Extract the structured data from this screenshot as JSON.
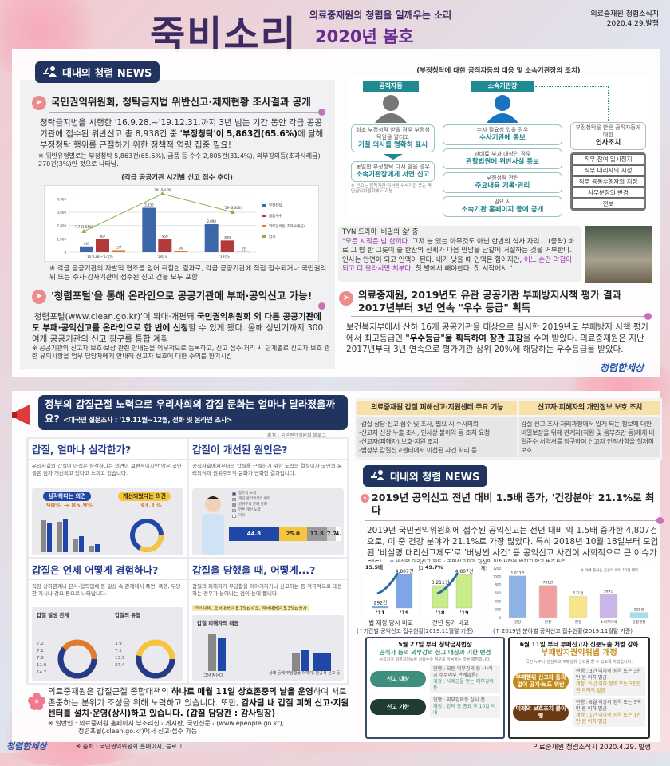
{
  "header": {
    "title": "죽비소리",
    "subtitle": "의료중재원의 청렴을 일깨우는 소리",
    "issue": "2020년 봄호",
    "publisher": "의료중재원 청렴소식지",
    "date": "2020.4.29.발행"
  },
  "news_badge": "대내외 청렴 NEWS",
  "article1": {
    "title": "국민권익위원회, 청탁금지법 위반신고·제재현황 조사결과 공개",
    "body_a": "청탁금지법을 시행한 '16.9.28.~'19.12.31.까지 3년 넘는 기간 동안 각급 공공기관에 접수된 위반신고 총 8,938건 중 ",
    "body_b": "'부정청탁'이 5,863건(65.6%)",
    "body_c": "에 달해 부정청탁 행위를 근절하기 위한 정책적 역량 집중 필요!",
    "note": "※ 위반유형별로는 부정청탁 5,863건(65.6%), 금품 등 수수 2,805건(31.4%), 외부강의등(초과사례금) 270건(3%)인 것으로 나타남.",
    "chart_note": "※ 각급 공공기관의 자발적 협조를 얻어 취합한 결과로, 각급 공공기관에 직접 접수되거나 국민권익위 또는 수사·감사기관에 접수된 신고 건을 모두 포함"
  },
  "article2": {
    "title": "'청렴포털'을 통해 온라인으로 공공기관에 부패·공익신고 가능!",
    "body_a": "'청렴포털(www.clean.go.kr)'이 확대·개편돼 ",
    "body_b": "국민권익위원회 외 다른 공공기관에도 부패·공익신고를 온라인으로 한 번에 신청",
    "body_c": "할 수 있게 됐다. 올해 상반기까지 300여개 공공기관의 신고 창구를 통합 계획",
    "note": "※ 공공기관의 신고자 보호·보상 관련 안내문을 의무적으로 등록하고, 신고 접수·처리 시 단계별로 신고자 보호 관련 유의사항을 업무 담당자에게 안내해 신고자 보호에 대한 주의를 환기시킴"
  },
  "diagram": {
    "title": "(부정청탁에 대한 공직자등의 대응 및 소속기관장의 조치)",
    "col1_head": "공직자등",
    "col2_head": "소속기관장",
    "c1_box1_small": "최초 부정청탁 받을 경우 부정청탁임을 알리고",
    "c1_box1_strong": "거절 의사를 명확히 표시",
    "c1_box2_small": "동일한 부정청탁 다시 받을 경우",
    "c1_box2_strong": "소속기관장에게 서면 신고",
    "c1_note": "※ 신고는 감독기관·감사원·수사기관 또는 국민권익위원회에도 가능",
    "c2_boxes": [
      {
        "small": "수사 필요성 있을 경우",
        "strong": "수사기관에 통보"
      },
      {
        "small": "과태료 부과 대상인 경우",
        "strong": "관할법원에 위반사실 통보"
      },
      {
        "small": "부정청탁 관련",
        "strong": "주요내용 기록·관리"
      },
      {
        "small": "필요 시",
        "strong": "소속기관 홈페이지 등에 공개"
      }
    ],
    "c3_head_small": "부정청탁을 받은 공직자등에 대한",
    "c3_head": "인사조치",
    "c3_items": [
      "직무 참여 일시정지",
      "직무 대리자의 지정",
      "직무 공동수행자의 지정",
      "사무분장의 변경",
      "전보"
    ]
  },
  "quote": {
    "source": "TVN 드라마 '비밀의 숲' 중",
    "hl1": "\"모든 시작은 밥 한끼다.",
    "t1": " 그저 늘 있는 아무것도 아닌 한번의 식사 자리... (중략) 바로 그 밥 한 그릇이 술 한잔의 신세가 다음 만남을 단칼에 거절하는 것을 거부한다. 인사는 안면이 되고 인맥이 된다. 내가 낮을 때 인맥은 힘이지만, ",
    "hl2": "어느 순간 약점이 되고 더 올라서면 치부다.",
    "t2": " 첫 발에서 빼야한다. 첫 시작에서.\""
  },
  "article3": {
    "title_1": "의료중재원, 2019년도 유관 공공기관 부패방지시책 평가 결과",
    "title_2": "2017년부터 3년 연속 \"우수 등급\" 획득",
    "body_a": "보건복지부에서 산하 16개 공공기관을 대상으로 실시한 2019년도 부패방지 시책 평가에서 최고등급인 ",
    "body_b": "\"우수등급\"을 획득하여 장관 표창",
    "body_c": "을 수여 받았다. 의료중재원은 지난 2017년부터 3년 연속으로 평가기관 상위 20%에 해당하는 우수등급을 받았다."
  },
  "logo_text": "청렴한세상",
  "survey": {
    "title": "정부의 갑질근절 노력으로 우리사회의 갑질 문화는 얼마나 달라졌을까요?",
    "subtitle": "<대국민 설문조사 : '19.11월~12월, 전화 및 온라인 조사>",
    "source": "출처 : 국민권익위원회 블로그",
    "p1": {
      "title": "갑질, 얼마나 심각한가?",
      "desc": "우리사회의 갑질이 아직은 심각하다는 의견이 보편적이지만 많은 국민들은 점차 개선되고 있다고 느끼고 있습니다.",
      "pill1": "심각하다는 의견",
      "val1": "90% → 85.9%",
      "pill2": "개선되었다는 의견",
      "val2": "33.1%"
    },
    "p2": {
      "title": "갑질이 개선된 원인은?",
      "desc": "공직사회에서부터의 갑질을 근절하기 위한 노력의 결실이자 국민의 윤리의식과 권위주의적 문화가 변화한 결과입니다.",
      "segments": [
        {
          "label": "정부의 노력",
          "value": "44.8",
          "color": "#1f47a8"
        },
        {
          "label": "개인 윤리의식의 변화",
          "value": "25.0",
          "color": "#f5c53a"
        },
        {
          "label": "권위주의 문화 완화",
          "value": "17.8",
          "color": "#9a9a9a"
        },
        {
          "label": "언론 개선 노력",
          "value": "7.7",
          "color": "#cfcfcf"
        },
        {
          "label": "기타",
          "value": "4.6",
          "color": "#ffffff"
        }
      ]
    },
    "p3": {
      "title": "갑질은 언제 어떻게 경험하나?",
      "desc": "직장 상하관계나 본사-협력업체 등 일상 속 관계에서 폭언, 폭행, 부당한 지시나 강요 등으로 나타납니다.",
      "sub1": "갑질 발생 관계",
      "sub2": "갑질의 유형",
      "left_vals": [
        "7.2",
        "7.1",
        "7.8",
        "11.0",
        "14.7"
      ],
      "right_vals": [
        "3.9",
        "7.1",
        "13.9",
        "27.4"
      ]
    },
    "p4": {
      "title": "갑질을 당했을 때, 어떻게...?",
      "desc": "갑질의 피해자가 부당함을 이야기하거나 신고하는 등 적극적으로 대응하는 경우가 늘어나는 점이 눈에 띕니다.",
      "highlight": "전년 대비, 소극대응은 8.7%p 감소, 적극대응은 5.3%p 증가",
      "chart_title": "갑질 피해자의 대응",
      "cat1": "그냥 참는다",
      "cat2": "상대 등에 부당함을 이야기, 관공서 신고 등"
    }
  },
  "closing": {
    "a": "의료중재원은 갑질근절 종합대책의 ",
    "b": "하나로 매월 11일 상호존중의 날을 운영",
    "c": "하여 서로 존중하는 분위기 조성을 위해 노력하고 있습니다. 또한, ",
    "d": "감사팀 내 갑질 피해 신고·지원센터를 설치·운영(상시)하고 있습니다. (갑질 담당관 : 감사팀장)",
    "note1": "※ 일반인 : 의료중재원 홈페이지 부조리신고게시판, 국민신문고(www.epeople.go.kr),",
    "note2": "청렴포털(.clean.go.kr)에서 신고·접수 가능"
  },
  "footer": {
    "source": "※ 출처 : 국민권익위원회 홈페이지, 블로그",
    "right": "의료중재원 청렴소식지 2020.4.29. 발행"
  },
  "table": {
    "head1": "의료중재원 갑질 피해신고·지원센터 주요 기능",
    "head2": "신고자·피해자의 개인정보 보호 조치",
    "items": [
      "-갑질 상담·신고 접수 및 조사, 필요 시 수사의뢰",
      "-신고자 신상 누출 조사, 인사상 불이익 등 조치 요청",
      "-신고자(피해자) 보호·지원 조치",
      "-범정부 갑질신고센터에서 이첩된 사건 처리 등"
    ],
    "protect": "갑질 신고 조사·처리과정에서 알게 되는 정보에 대한 비밀보장을 위해 관계자(직원 및 옴부즈만 등)에게 비밀준수 서약서를 징구하여 신고자 인적사항을 철저히 보호"
  },
  "article4": {
    "title": "2019년 공익신고 전년 대비 1.5배 증가, '건강분야' 21.1%로 최다",
    "body": "2019년 국민권익위원회에 접수된 공익신고는 전년 대비 약 1.5배 증가한 4,807건으로, 이 중 건강 분야가 21.1%로 가장 많았다. 특히 2018년 10월 18일부터 도입된 '비실명 대리신고제도'로 '버닝썬 사건' 등 공익신고 사건이 사회적으로 큰 이슈가 됐다.",
    "note": "※ 비실명 대리신고 제도 : 공익신고자가 자신의 인적사항을 밝히지 않고 변호사로 하여금 공익신고를 대리하도록 할 수 있는 제도",
    "caption1": "(↑기간별 공익신고 접수현황(2019.11월말 기준)",
    "caption2": "(↑ 2019년 분야별 공익신고 접수현황(2019.11월말 기준)"
  },
  "posters": [
    {
      "title": "5월 27일 부터 청탁금지법상",
      "subtitle": "공직자 등의 외부강의 신고 대상과 기한 변경",
      "desc": "공직자가 외부강의등을 금품수수 창구로 악용하는 것을 예방합니다.",
      "rows": [
        {
          "label": "신고 대상",
          "now": "현행 : 모든 외부강의 등 (사례금 수수여부 관계없음)",
          "new": "개정 : 사례금을 받는 외부강의 등"
        },
        {
          "label": "신고 기한",
          "now": "현행 : 외부강의등 실시 전",
          "new": "개정 : 강의 등 종료 후 10일 이내"
        }
      ]
    },
    {
      "title": "6월 11일 부터 부패신고자 신분노출 처벌 강화",
      "subtitle": "부패방지권익위법 개정",
      "desc": "국민 누구나 안심하고 부패행위 신고를 할 수 있도록 하겠습니다.",
      "rows": [
        {
          "label": "부패행위 신고자 동의없이 공개·보도 위반",
          "now": "현행 : 3년 이하의 징역 또는 3천만 원 이하 벌금",
          "new": "개정 : 5년 이하 징역 또는 5천만 원 이하의 벌금"
        },
        {
          "label": "미래의 보호조치 불이행",
          "now": "현행 : 6월 이상의 징역 또는 5백만 원 이하 벌금",
          "new": "개정 : 1년 이하의 징역 또는 1천만 원 이하 벌금"
        }
      ]
    }
  ],
  "chart_data": [
    {
      "type": "bar",
      "title": "(각급 공공기관 시기별 신고 접수 추이)",
      "categories": [
        "'16.9.28.~'17년도",
        "'18년도",
        "'19년도"
      ],
      "ylim": [
        0,
        4500
      ],
      "yticks": [
        "0",
        "1,000",
        "2,000",
        "3,000",
        "4,000"
      ],
      "series": [
        {
          "name": "부정청탁",
          "values": [
            435,
            3330,
            2098
          ],
          "color": "#3d68a8"
        },
        {
          "name": "금품수수",
          "values": [
            967,
            959,
            879
          ],
          "color": "#b33a3a"
        },
        {
          "name": "외부강의등(초과사례금)",
          "values": [
            157,
            90,
            23
          ],
          "color": "#e07b2e"
        }
      ],
      "line": {
        "name": "합계",
        "values": [
          1559,
          4379,
          3000
        ],
        "labels": [
          "'17 (1,559)",
          "'18 (4,379)",
          "'19 (3,000)"
        ],
        "color": "#8db04a"
      },
      "legend": "right"
    },
    {
      "type": "bar",
      "title": "법 제정 당시 비교",
      "categories": [
        "'11",
        "'19"
      ],
      "values": [
        292,
        4807
      ],
      "labels": [
        "292건",
        "4,807건"
      ],
      "annotation": "15.5배"
    },
    {
      "type": "bar",
      "title": "전년 동기 비교",
      "categories": [
        "'18",
        "'19"
      ],
      "values": [
        3211,
        4807
      ],
      "labels": [
        "3,211건",
        "4,807건"
      ],
      "annotation": "49.7%"
    },
    {
      "type": "bar",
      "categories": [
        "건강",
        "안전",
        "환경",
        "소비자이익",
        "공정경쟁"
      ],
      "values": [
        1013,
        781,
        521,
        569,
        125
      ],
      "labels": [
        "1,013건",
        "781건",
        "521건",
        "569건",
        "125건"
      ],
      "ylim": [
        0,
        1200
      ],
      "yticks": [
        "0",
        "200",
        "400",
        "600",
        "800",
        "1000",
        "1200"
      ],
      "annotation": "※ 이에 준하는 공공의 이익 10건 제외",
      "colors": [
        "#8fb2e6",
        "#f0a0a0",
        "#f6e58a",
        "#c9b5e6",
        "#9fe0ef"
      ]
    }
  ]
}
